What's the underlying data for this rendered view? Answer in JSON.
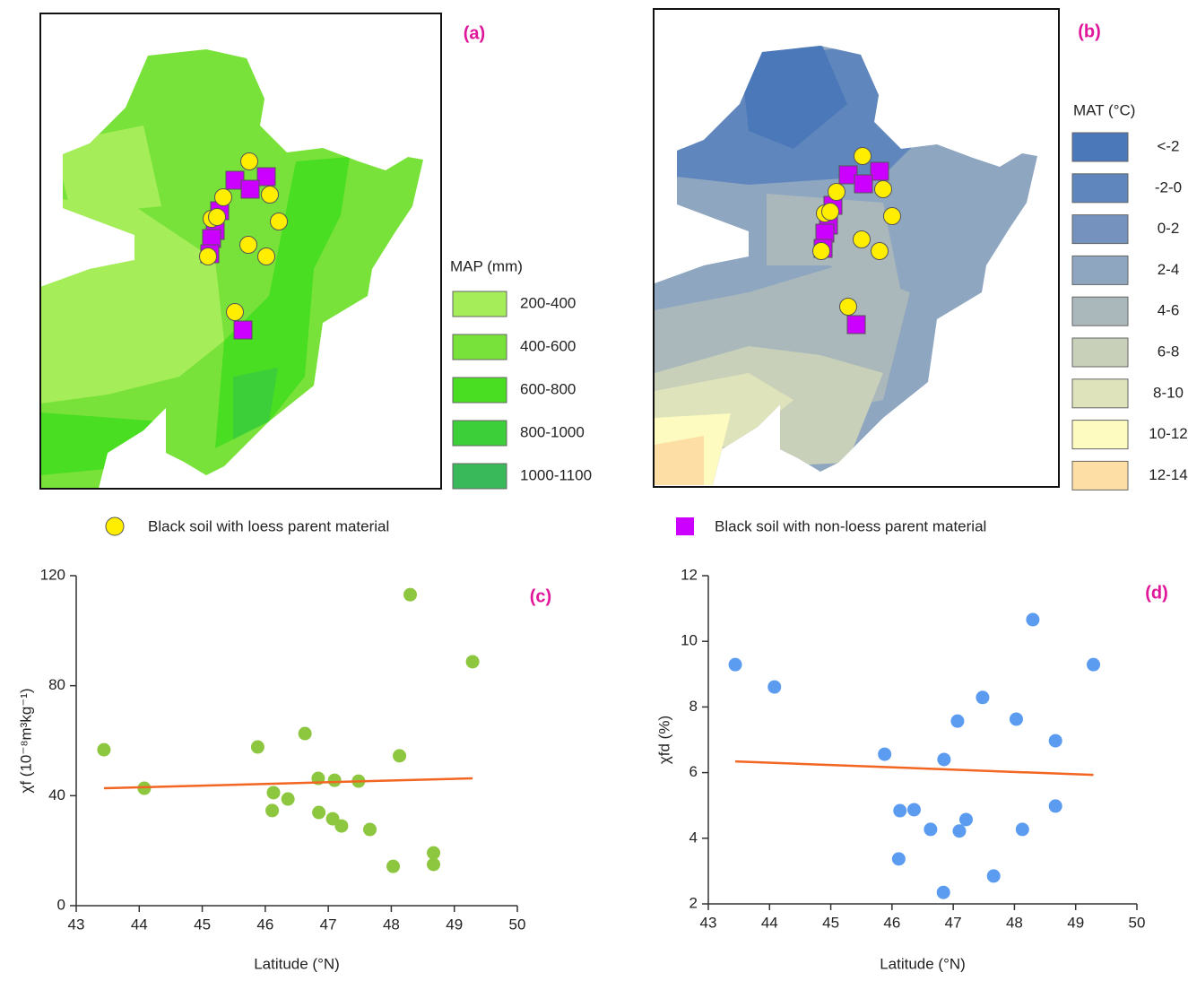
{
  "maps": [
    {
      "label": "(a)",
      "legend_title": "MAP (mm)",
      "legend": [
        {
          "label": "200-400",
          "color": "#a6ee59"
        },
        {
          "label": "400-600",
          "color": "#79e23a"
        },
        {
          "label": "600-800",
          "color": "#4ade22"
        },
        {
          "label": "800-1000",
          "color": "#3ccf3a"
        },
        {
          "label": "1000-1100",
          "color": "#39b95a"
        }
      ]
    },
    {
      "label": "(b)",
      "legend_title": "MAT (°C)",
      "legend": [
        {
          "label": "<-2",
          "color": "#4a78b8"
        },
        {
          "label": "-2-0",
          "color": "#5f86bd"
        },
        {
          "label": "0-2",
          "color": "#7592bf"
        },
        {
          "label": "2-4",
          "color": "#8ea6c0"
        },
        {
          "label": "4-6",
          "color": "#aab8bb"
        },
        {
          "label": "6-8",
          "color": "#c8d0b9"
        },
        {
          "label": "8-10",
          "color": "#dfe3bb"
        },
        {
          "label": "10-12",
          "color": "#fdfbc0"
        },
        {
          "label": "12-14",
          "color": "#fddfa5"
        }
      ]
    }
  ],
  "markers": [
    {
      "label": "Black soil with loess parent material",
      "color": "#ffee00"
    },
    {
      "label": "Black soil with non-loess parent material",
      "color": "#cc00ff"
    }
  ],
  "chart_data": [
    {
      "type": "scatter",
      "label": "(c)",
      "xlabel": "Latitude (°N)",
      "ylabel": "χf (10⁻⁸m³kg⁻¹)",
      "x": [
        43.44,
        44.08,
        45.88,
        46.11,
        46.13,
        46.36,
        46.63,
        46.84,
        46.85,
        47.07,
        47.1,
        47.21,
        47.48,
        47.66,
        48.03,
        48.13,
        48.3,
        48.67,
        48.67,
        49.29
      ],
      "values": [
        56.7,
        42.7,
        57.7,
        34.6,
        41.1,
        38.8,
        62.6,
        46.3,
        33.9,
        31.6,
        45.6,
        29.0,
        45.3,
        27.7,
        14.3,
        54.5,
        113.1,
        15.0,
        19.2,
        88.7
      ],
      "color": "#8dc63f",
      "trend": {
        "x": [
          43.44,
          49.29
        ],
        "values": [
          42.7,
          46.3
        ],
        "color": "#f26522"
      },
      "xlim": [
        43,
        50
      ],
      "xticks": [
        43,
        44,
        45,
        46,
        47,
        48,
        49,
        50
      ],
      "ylim": [
        0,
        120
      ],
      "yticks": [
        0,
        40,
        80,
        120
      ]
    },
    {
      "type": "scatter",
      "label": "(d)",
      "xlabel": "Latitude (°N)",
      "ylabel": "χfd (%)",
      "x": [
        43.44,
        44.08,
        45.88,
        46.11,
        46.13,
        46.36,
        46.63,
        46.84,
        46.85,
        47.07,
        47.1,
        47.21,
        47.48,
        47.66,
        48.03,
        48.13,
        48.3,
        48.67,
        48.67,
        49.29
      ],
      "values": [
        9.29,
        8.61,
        6.56,
        3.37,
        4.84,
        4.87,
        4.27,
        2.35,
        6.4,
        7.57,
        4.22,
        4.57,
        8.29,
        2.85,
        7.63,
        4.27,
        10.66,
        6.97,
        4.98,
        9.29
      ],
      "color": "#5b9cf0",
      "trend": {
        "x": [
          43.44,
          49.29
        ],
        "values": [
          6.34,
          5.93
        ],
        "color": "#f26522"
      },
      "xlim": [
        43,
        50
      ],
      "xticks": [
        43,
        44,
        45,
        46,
        47,
        48,
        49,
        50
      ],
      "ylim": [
        2,
        12
      ],
      "yticks": [
        2,
        4,
        6,
        8,
        10,
        12
      ]
    }
  ]
}
